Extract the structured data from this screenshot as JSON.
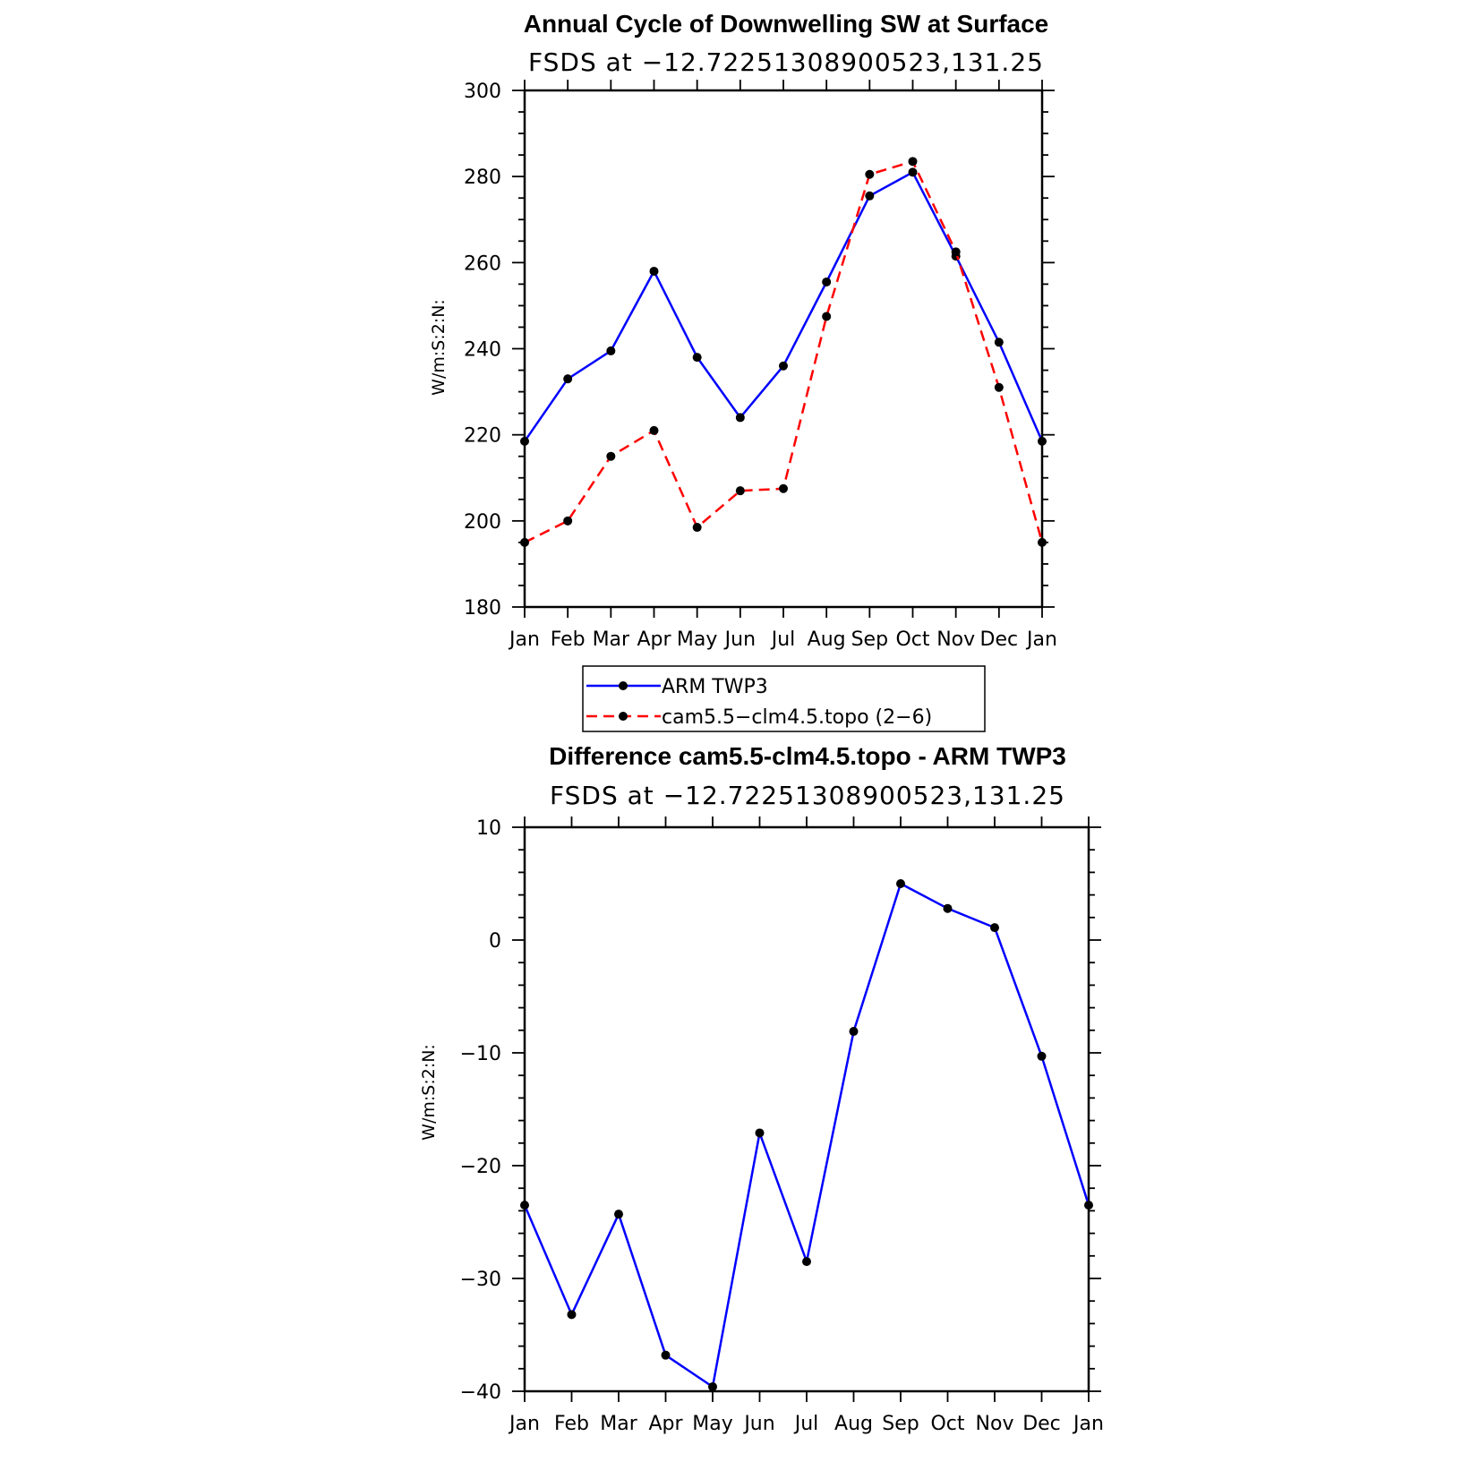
{
  "chart_data": [
    {
      "type": "line",
      "title": "Annual Cycle of Downwelling SW at Surface",
      "subtitle": "FSDS at −12.72251308900523,131.25",
      "ylabel": "W/m:S:2:N:",
      "ylim": [
        180,
        300
      ],
      "yticks": [
        "180",
        "200",
        "220",
        "240",
        "260",
        "280",
        "300"
      ],
      "categories": [
        "Jan",
        "Feb",
        "Mar",
        "Apr",
        "May",
        "Jun",
        "Jul",
        "Aug",
        "Sep",
        "Oct",
        "Nov",
        "Dec",
        "Jan"
      ],
      "series": [
        {
          "name": "ARM TWP3",
          "color": "#0000ff",
          "dash": "solid",
          "values": [
            218.5,
            233,
            239.5,
            258,
            238,
            224,
            236,
            255.5,
            275.5,
            281,
            261.5,
            241.5,
            218.5
          ]
        },
        {
          "name": "cam5.5−clm4.5.topo (2−6)",
          "color": "#ff0000",
          "dash": "dashed",
          "values": [
            195,
            200,
            215,
            221,
            198.5,
            207,
            207.5,
            247.5,
            280.5,
            283.5,
            262.5,
            231,
            195
          ]
        }
      ]
    },
    {
      "type": "line",
      "title": "Difference cam5.5-clm4.5.topo - ARM TWP3",
      "subtitle": "FSDS at −12.72251308900523,131.25",
      "ylabel": "W/m:S:2:N:",
      "ylim": [
        -40,
        10
      ],
      "yticks": [
        "−40",
        "−30",
        "−20",
        "−10",
        "0",
        "10"
      ],
      "categories": [
        "Jan",
        "Feb",
        "Mar",
        "Apr",
        "May",
        "Jun",
        "Jul",
        "Aug",
        "Sep",
        "Oct",
        "Nov",
        "Dec",
        "Jan"
      ],
      "series": [
        {
          "color": "#0000ff",
          "dash": "solid",
          "values": [
            -23.5,
            -33.2,
            -24.3,
            -36.8,
            -39.6,
            -17.1,
            -28.5,
            -8.1,
            5,
            2.8,
            1.1,
            -10.3,
            -23.5
          ]
        }
      ]
    }
  ]
}
